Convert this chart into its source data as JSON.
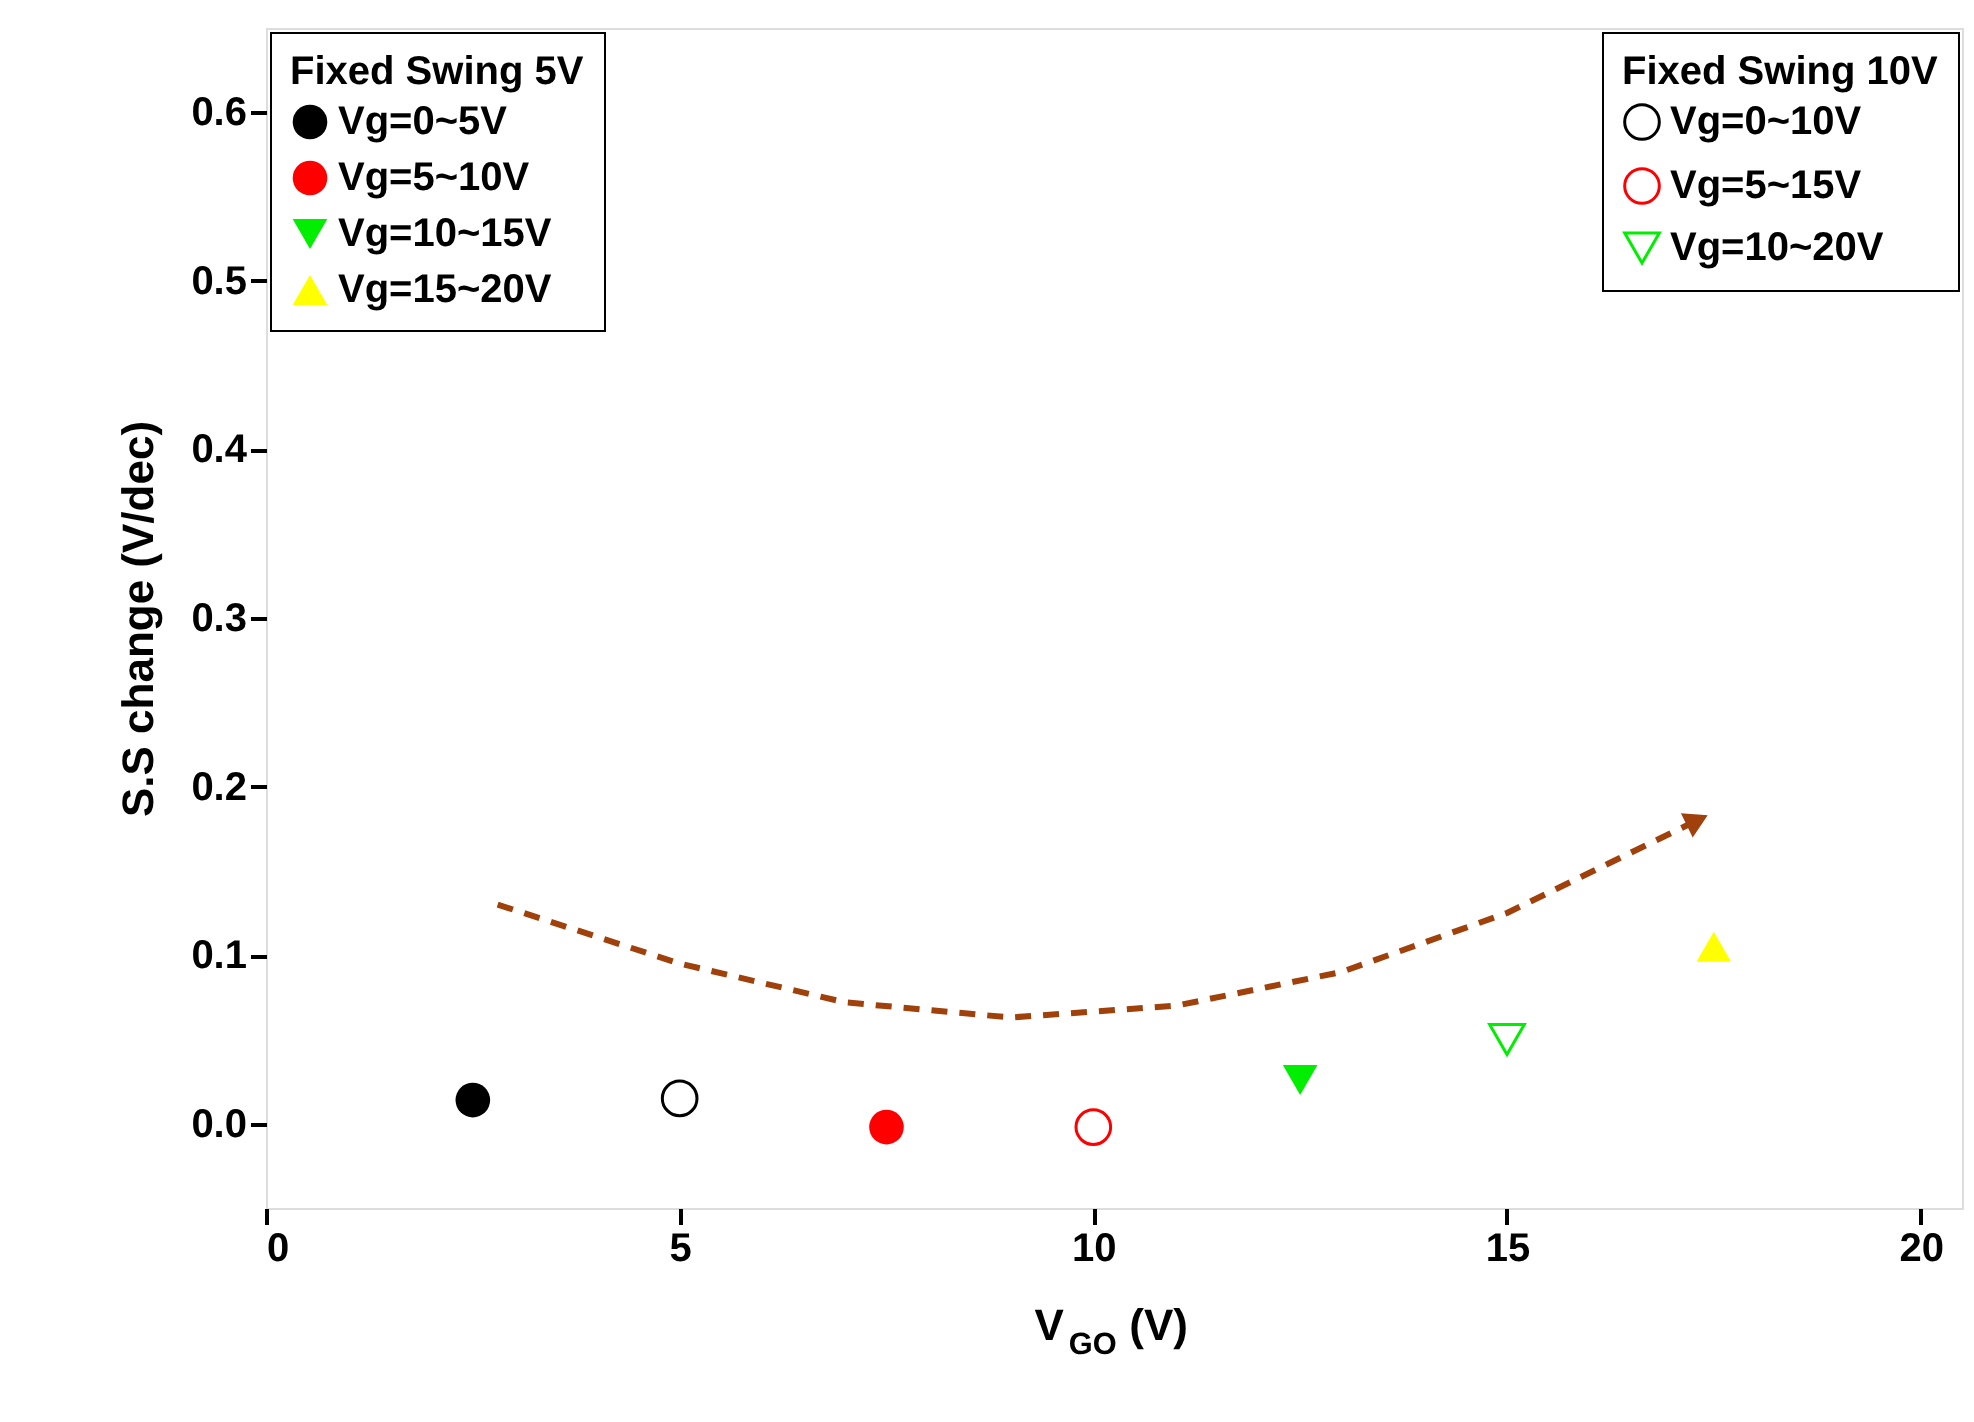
{
  "chart_data": {
    "type": "scatter",
    "xlabel": "V$_{GO}$ (V)",
    "ylabel": "S.S change (V/dec)",
    "legend_title": [
      "Fixed Swing 5V",
      "Fixed Swing 10V"
    ],
    "legend": [
      "top left",
      "top right"
    ],
    "grid": false,
    "xlim": [
      0,
      20.5
    ],
    "xticks": [
      0,
      5,
      10,
      15,
      20
    ],
    "ylim": [
      -0.05,
      0.65
    ],
    "yticks": [
      {
        "value": 0,
        "label": "0.0"
      },
      0.1,
      0.2,
      0.3,
      0.4,
      0.5,
      0.6
    ],
    "series": [
      {
        "name": "Vg=0~5V",
        "color": "#000000",
        "marker": "circle",
        "x": [
          2.5
        ],
        "values": [
          0.014
        ]
      },
      {
        "name": "Vg=5~10V",
        "color": "#ff0000",
        "marker": "circle",
        "x": [
          7.5
        ],
        "values": [
          -0.002
        ]
      },
      {
        "name": "Vg=10~15V",
        "color": "#00ee00",
        "marker": "triangle-down",
        "x": [
          12.5
        ],
        "values": [
          0.026
        ]
      },
      {
        "name": "Vg=15~20V",
        "color": "#ffff00",
        "marker": "triangle-up",
        "x": [
          17.5
        ],
        "values": [
          0.105
        ]
      },
      {
        "name": "Vg=0~10V",
        "color": "#000000",
        "marker": "circle",
        "x": [
          5
        ],
        "values": [
          0.015
        ]
      },
      {
        "name": "Vg=5~15V",
        "color": "#ff0000",
        "marker": "circle",
        "x": [
          10
        ],
        "values": [
          -0.002
        ]
      },
      {
        "name": "Vg=10~20V",
        "color": "#00ee00",
        "marker": "triangle-down",
        "x": [
          15
        ],
        "values": [
          0.05
        ]
      },
      {
        "type": "line",
        "color": "#a0400a",
        "line_style": "dashed",
        "x": [
          2.8,
          5,
          7,
          9,
          11,
          13,
          15,
          17.3
        ],
        "values": [
          0.13,
          0.095,
          0.072,
          0.063,
          0.07,
          0.09,
          0.125,
          0.18
        ]
      }
    ]
  }
}
